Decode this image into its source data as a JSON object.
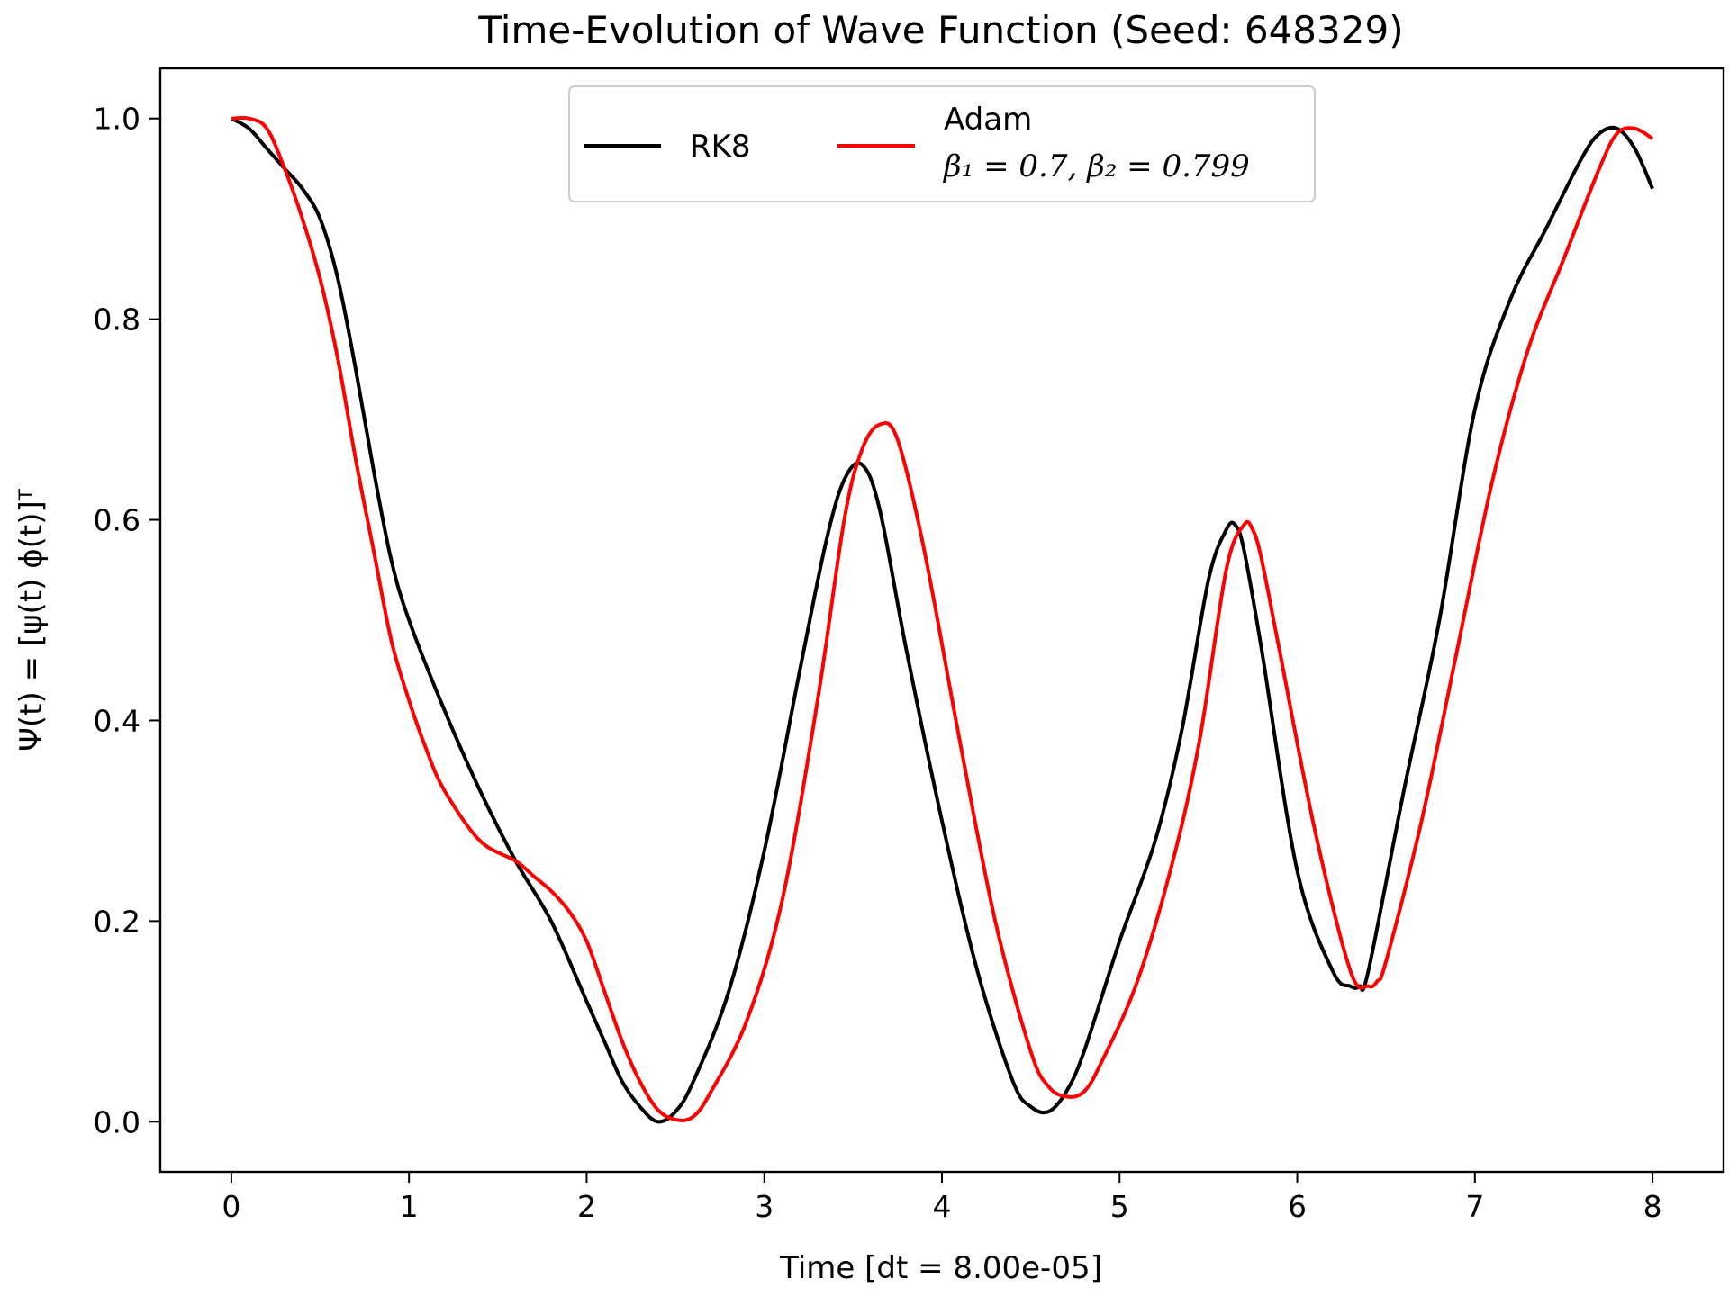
{
  "chart_data": {
    "type": "line",
    "title": "Time-Evolution of Wave Function (Seed: 648329)",
    "xlabel": "Time [dt = 8.00e-05]",
    "ylabel": "Ψ(t) = [ψ(t)    ϕ(t)]ᵀ",
    "xlim": [
      -0.4,
      8.4
    ],
    "ylim": [
      -0.05,
      1.05
    ],
    "xticks": [
      0,
      1,
      2,
      3,
      4,
      5,
      6,
      7,
      8
    ],
    "xtick_labels": [
      "0",
      "1",
      "2",
      "3",
      "4",
      "5",
      "6",
      "7",
      "8"
    ],
    "yticks": [
      0.0,
      0.2,
      0.4,
      0.6,
      0.8,
      1.0
    ],
    "ytick_labels": [
      "0.0",
      "0.2",
      "0.4",
      "0.6",
      "0.8",
      "1.0"
    ],
    "grid": false,
    "legend": {
      "placement": "top-center",
      "columns": 2
    },
    "series": [
      {
        "name": "RK8",
        "color": "#000000",
        "x": [
          0,
          0.1,
          0.2,
          0.3,
          0.4,
          0.5,
          0.6,
          0.7,
          0.8,
          0.9,
          1.0,
          1.2,
          1.4,
          1.6,
          1.8,
          2.0,
          2.1,
          2.2,
          2.3,
          2.4,
          2.5,
          2.6,
          2.8,
          3.0,
          3.2,
          3.35,
          3.45,
          3.55,
          3.65,
          3.8,
          4.0,
          4.2,
          4.4,
          4.5,
          4.6,
          4.7,
          4.8,
          5.0,
          5.2,
          5.35,
          5.5,
          5.6,
          5.65,
          5.7,
          5.8,
          6.0,
          6.2,
          6.3,
          6.35,
          6.4,
          6.6,
          6.8,
          7.0,
          7.2,
          7.4,
          7.6,
          7.7,
          7.8,
          7.9,
          8.0
        ],
        "y": [
          1.0,
          0.99,
          0.97,
          0.95,
          0.93,
          0.9,
          0.84,
          0.75,
          0.65,
          0.56,
          0.5,
          0.41,
          0.33,
          0.26,
          0.2,
          0.12,
          0.08,
          0.04,
          0.015,
          0.0,
          0.01,
          0.04,
          0.13,
          0.27,
          0.45,
          0.58,
          0.64,
          0.655,
          0.61,
          0.47,
          0.3,
          0.15,
          0.04,
          0.015,
          0.01,
          0.03,
          0.07,
          0.18,
          0.28,
          0.39,
          0.54,
          0.59,
          0.595,
          0.57,
          0.47,
          0.25,
          0.15,
          0.135,
          0.135,
          0.15,
          0.33,
          0.5,
          0.71,
          0.82,
          0.89,
          0.96,
          0.985,
          0.99,
          0.97,
          0.93
        ]
      },
      {
        "name": "Adam",
        "legend_label": "Adam",
        "legend_sublabel": "β₁ = 0.7, β₂ = 0.799",
        "color": "#ff0000",
        "x": [
          0,
          0.1,
          0.2,
          0.3,
          0.4,
          0.5,
          0.6,
          0.7,
          0.8,
          0.9,
          1.0,
          1.1,
          1.2,
          1.4,
          1.6,
          1.7,
          1.8,
          1.9,
          2.0,
          2.1,
          2.2,
          2.3,
          2.4,
          2.5,
          2.6,
          2.7,
          2.9,
          3.1,
          3.3,
          3.45,
          3.55,
          3.65,
          3.75,
          3.9,
          4.1,
          4.3,
          4.5,
          4.6,
          4.7,
          4.8,
          4.9,
          5.1,
          5.3,
          5.45,
          5.6,
          5.7,
          5.75,
          5.8,
          5.9,
          6.1,
          6.3,
          6.4,
          6.45,
          6.5,
          6.7,
          6.9,
          7.1,
          7.3,
          7.5,
          7.7,
          7.8,
          7.9,
          8.0
        ],
        "y": [
          1.0,
          1.0,
          0.99,
          0.95,
          0.9,
          0.84,
          0.76,
          0.66,
          0.57,
          0.48,
          0.42,
          0.37,
          0.33,
          0.28,
          0.26,
          0.245,
          0.23,
          0.21,
          0.18,
          0.13,
          0.08,
          0.04,
          0.012,
          0.002,
          0.005,
          0.03,
          0.1,
          0.22,
          0.42,
          0.6,
          0.67,
          0.695,
          0.68,
          0.57,
          0.38,
          0.2,
          0.07,
          0.035,
          0.025,
          0.03,
          0.06,
          0.14,
          0.26,
          0.38,
          0.55,
          0.595,
          0.59,
          0.56,
          0.47,
          0.29,
          0.15,
          0.135,
          0.14,
          0.16,
          0.3,
          0.47,
          0.64,
          0.77,
          0.86,
          0.95,
          0.985,
          0.99,
          0.98
        ]
      }
    ]
  }
}
